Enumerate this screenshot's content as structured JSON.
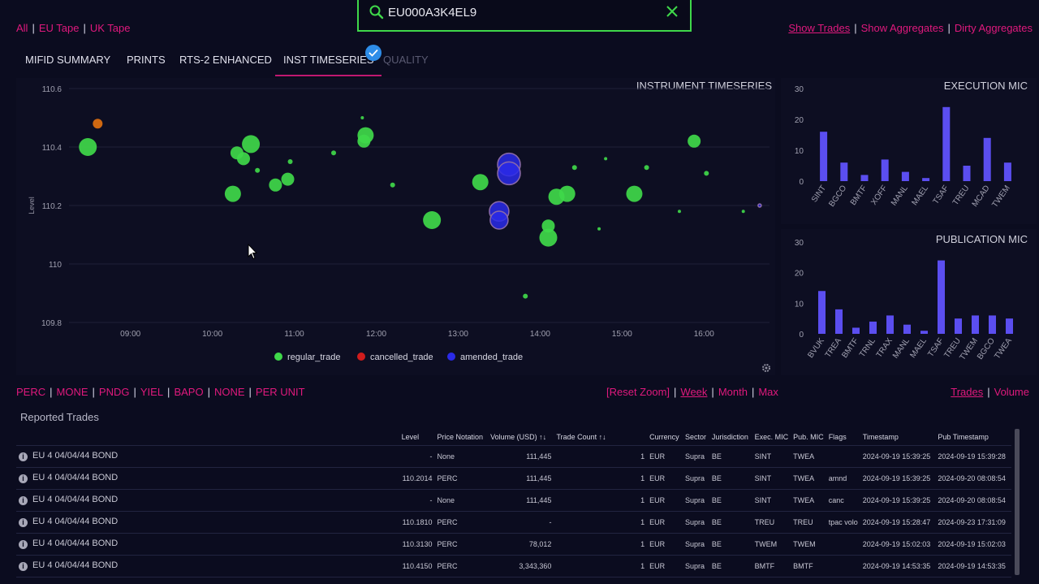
{
  "topbar": {
    "tapes": [
      "All",
      "EU Tape",
      "UK Tape"
    ],
    "search_value": "EU000A3K4EL9",
    "links": [
      "Show Trades",
      "Show Aggregates",
      "Dirty Aggregates"
    ]
  },
  "tabs": [
    "MIFID SUMMARY",
    "PRINTS",
    "RTS-2 ENHANCED",
    "INST TIMESERIES",
    "QUALITY"
  ],
  "active_tab": "INST TIMESERIES",
  "filters": [
    "PERC",
    "MONE",
    "PNDG",
    "YIEL",
    "BAPO",
    "NONE",
    "PER UNIT"
  ],
  "zoom": [
    "[Reset Zoom]",
    "Week",
    "Month",
    "Max"
  ],
  "views": [
    "Trades",
    "Volume"
  ],
  "reported_title": "Reported Trades",
  "colors": {
    "accent": "#e0197d",
    "regular": "#3fd84a",
    "cancelled": "#d01c1c",
    "amended": "#2a2ae8",
    "bar": "#5b4ef0"
  },
  "chart_data": [
    {
      "type": "scatter",
      "title": "INSTRUMENT TIMESERIES",
      "ylabel": "Level",
      "ylim": [
        109.8,
        110.6
      ],
      "yticks": [
        "109.8",
        "110",
        "110.2",
        "110.4",
        "110.6"
      ],
      "xlim": [
        8.25,
        16.8
      ],
      "xticks": [
        "09:00",
        "10:00",
        "11:00",
        "12:00",
        "13:00",
        "14:00",
        "15:00",
        "16:00"
      ],
      "legend": [
        "regular_trade",
        "cancelled_trade",
        "amended_trade"
      ],
      "regular_trade": [
        {
          "x": 8.48,
          "y": 110.4,
          "s": 11
        },
        {
          "x": 10.25,
          "y": 110.24,
          "s": 10
        },
        {
          "x": 10.3,
          "y": 110.38,
          "s": 8
        },
        {
          "x": 10.38,
          "y": 110.36,
          "s": 8
        },
        {
          "x": 10.47,
          "y": 110.41,
          "s": 11
        },
        {
          "x": 10.55,
          "y": 110.32,
          "s": 3
        },
        {
          "x": 10.77,
          "y": 110.27,
          "s": 8
        },
        {
          "x": 10.92,
          "y": 110.29,
          "s": 8
        },
        {
          "x": 10.95,
          "y": 110.35,
          "s": 3
        },
        {
          "x": 11.48,
          "y": 110.38,
          "s": 3
        },
        {
          "x": 11.83,
          "y": 110.5,
          "s": 2
        },
        {
          "x": 11.85,
          "y": 110.42,
          "s": 8
        },
        {
          "x": 11.87,
          "y": 110.44,
          "s": 10
        },
        {
          "x": 12.2,
          "y": 110.27,
          "s": 3
        },
        {
          "x": 12.68,
          "y": 110.15,
          "s": 11
        },
        {
          "x": 13.27,
          "y": 110.28,
          "s": 10
        },
        {
          "x": 13.82,
          "y": 109.89,
          "s": 3
        },
        {
          "x": 14.1,
          "y": 110.13,
          "s": 8
        },
        {
          "x": 14.1,
          "y": 110.09,
          "s": 11
        },
        {
          "x": 14.2,
          "y": 110.23,
          "s": 10
        },
        {
          "x": 14.33,
          "y": 110.24,
          "s": 10
        },
        {
          "x": 14.42,
          "y": 110.33,
          "s": 3
        },
        {
          "x": 14.72,
          "y": 110.12,
          "s": 2
        },
        {
          "x": 14.8,
          "y": 110.36,
          "s": 2
        },
        {
          "x": 15.15,
          "y": 110.24,
          "s": 10
        },
        {
          "x": 15.3,
          "y": 110.33,
          "s": 3
        },
        {
          "x": 15.7,
          "y": 110.18,
          "s": 2
        },
        {
          "x": 15.88,
          "y": 110.42,
          "s": 8
        },
        {
          "x": 16.03,
          "y": 110.31,
          "s": 3
        },
        {
          "x": 16.48,
          "y": 110.18,
          "s": 2
        }
      ],
      "cancelled_trade": [
        {
          "x": 8.6,
          "y": 110.48,
          "s": 6
        }
      ],
      "amended_trade": [
        {
          "x": 13.62,
          "y": 110.34,
          "s": 14
        },
        {
          "x": 13.62,
          "y": 110.31,
          "s": 14
        },
        {
          "x": 13.5,
          "y": 110.18,
          "s": 12
        },
        {
          "x": 13.5,
          "y": 110.15,
          "s": 11
        },
        {
          "x": 16.68,
          "y": 110.2,
          "s": 2
        }
      ]
    },
    {
      "type": "bar",
      "title": "EXECUTION MIC",
      "ylim": [
        0,
        30
      ],
      "yticks": [
        "0",
        "10",
        "20",
        "30"
      ],
      "categories": [
        "SINT",
        "BGCO",
        "BMTF",
        "XOFF",
        "MANL",
        "MAEL",
        "TSAF",
        "TREU",
        "MCAD",
        "TWEM"
      ],
      "values": [
        16,
        6,
        2,
        7,
        3,
        1,
        24,
        5,
        14,
        6
      ]
    },
    {
      "type": "bar",
      "title": "PUBLICATION MIC",
      "ylim": [
        0,
        30
      ],
      "yticks": [
        "0",
        "10",
        "20",
        "30"
      ],
      "categories": [
        "BVUK",
        "TREA",
        "BMTF",
        "TRNL",
        "TRAX",
        "MANL",
        "MAEL",
        "TSAF",
        "TREU",
        "TWEM",
        "BGCO",
        "TWEA"
      ],
      "values": [
        14,
        8,
        2,
        4,
        6,
        3,
        1,
        24,
        5,
        6,
        6,
        5
      ]
    }
  ],
  "table": {
    "headers": [
      "Level",
      "Price Notation",
      "Volume (USD) ↑↓",
      "Trade Count ↑↓",
      "Currency",
      "Sector",
      "Jurisdiction",
      "Exec. MIC",
      "Pub. MIC",
      "Flags",
      "Timestamp",
      "Pub Timestamp"
    ],
    "rows": [
      {
        "name": "EU 4 04/04/44 BOND",
        "level": "-",
        "notation": "None",
        "volume": "111,445",
        "count": "1",
        "currency": "EUR",
        "sector": "Supra",
        "jur": "BE",
        "exec": "SINT",
        "pub": "TWEA",
        "flags": "",
        "ts": "2024-09-19 15:39:25",
        "pts": "2024-09-19 15:39:28"
      },
      {
        "name": "EU 4 04/04/44 BOND",
        "level": "110.2014",
        "notation": "PERC",
        "volume": "111,445",
        "count": "1",
        "currency": "EUR",
        "sector": "Supra",
        "jur": "BE",
        "exec": "SINT",
        "pub": "TWEA",
        "flags": "amnd",
        "ts": "2024-09-19 15:39:25",
        "pts": "2024-09-20 08:08:54"
      },
      {
        "name": "EU 4 04/04/44 BOND",
        "level": "-",
        "notation": "None",
        "volume": "111,445",
        "count": "1",
        "currency": "EUR",
        "sector": "Supra",
        "jur": "BE",
        "exec": "SINT",
        "pub": "TWEA",
        "flags": "canc",
        "ts": "2024-09-19 15:39:25",
        "pts": "2024-09-20 08:08:54"
      },
      {
        "name": "EU 4 04/04/44 BOND",
        "level": "110.1810",
        "notation": "PERC",
        "volume": "-",
        "count": "1",
        "currency": "EUR",
        "sector": "Supra",
        "jur": "BE",
        "exec": "TREU",
        "pub": "TREU",
        "flags": "tpac volo",
        "ts": "2024-09-19 15:28:47",
        "pts": "2024-09-23 17:31:09"
      },
      {
        "name": "EU 4 04/04/44 BOND",
        "level": "110.3130",
        "notation": "PERC",
        "volume": "78,012",
        "count": "1",
        "currency": "EUR",
        "sector": "Supra",
        "jur": "BE",
        "exec": "TWEM",
        "pub": "TWEM",
        "flags": "",
        "ts": "2024-09-19 15:02:03",
        "pts": "2024-09-19 15:02:03"
      },
      {
        "name": "EU 4 04/04/44 BOND",
        "level": "110.4150",
        "notation": "PERC",
        "volume": "3,343,360",
        "count": "1",
        "currency": "EUR",
        "sector": "Supra",
        "jur": "BE",
        "exec": "BMTF",
        "pub": "BMTF",
        "flags": "",
        "ts": "2024-09-19 14:53:35",
        "pts": "2024-09-19 14:53:35"
      }
    ]
  }
}
